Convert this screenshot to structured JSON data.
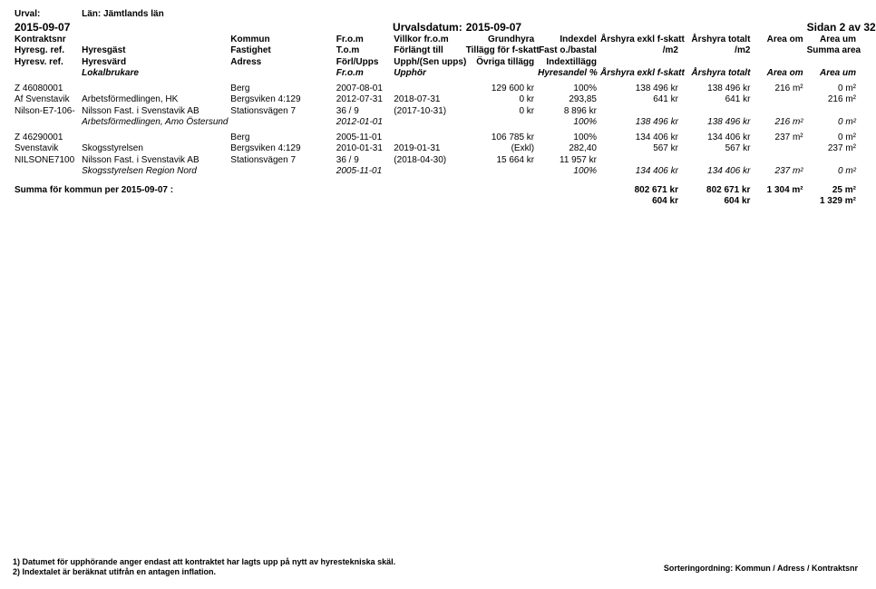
{
  "report": {
    "urval_label": "Urval:",
    "lan": "Län: Jämtlands län",
    "date": "2015-09-07",
    "urvalsdatum_label": "Urvalsdatum:",
    "urvalsdatum_value": "2015-09-07",
    "page_label": "Sidan 2 av 32"
  },
  "cols": {
    "w": [
      70,
      155,
      110,
      60,
      75,
      75,
      65,
      85,
      75,
      55,
      55
    ]
  },
  "header": {
    "r1": [
      "Kontraktsnr",
      "",
      "Kommun",
      "Fr.o.m",
      "Villkor fr.o.m",
      "Grundhyra",
      "Indexdel",
      "Årshyra exkl f-skatt",
      "Årshyra totalt",
      "Area om",
      "Area um"
    ],
    "r2": [
      "Hyresg. ref.",
      "Hyresgäst",
      "Fastighet",
      "T.o.m",
      "Förlängt till",
      "Tillägg för f-skatt",
      "Fast o./bastal",
      "/m2",
      "/m2",
      "",
      "Summa area"
    ],
    "r3": [
      "Hyresv. ref.",
      "Hyresvärd",
      "Adress",
      "Förl/Upps",
      "Upph/(Sen upps)",
      "Övriga tillägg",
      "Indextillägg",
      "",
      "",
      "",
      ""
    ],
    "r4": [
      "",
      "Lokalbrukare",
      "",
      "Fr.o.m",
      "Upphör",
      "",
      "Hyresandel %",
      "Årshyra exkl f-skatt",
      "Årshyra totalt",
      "Area om",
      "Area um"
    ]
  },
  "blocks": [
    {
      "rows": [
        [
          "Z 46080001",
          "",
          "Berg",
          "2007-08-01",
          "",
          "129 600 kr",
          "100%",
          "138 496 kr",
          "138 496 kr",
          "216 m²",
          "0 m²"
        ],
        [
          "Af Svenstavik",
          "Arbetsförmedlingen, HK",
          "Bergsviken 4:129",
          "2012-07-31",
          "2018-07-31",
          "0 kr",
          "293,85",
          "641 kr",
          "641 kr",
          "",
          "216 m²"
        ],
        [
          "Nilson-E7-106-",
          "Nilsson Fast. i Svenstavik AB",
          "Stationsvägen 7",
          "36 / 9",
          "(2017-10-31)",
          "0 kr",
          "8 896 kr",
          "",
          "",
          "",
          ""
        ]
      ],
      "group": [
        "",
        "Arbetsförmedlingen, Amo Östersund",
        "",
        "2012-01-01",
        "",
        "",
        "100%",
        "138 496 kr",
        "138 496 kr",
        "216 m²",
        "0 m²"
      ]
    },
    {
      "rows": [
        [
          "Z 46290001",
          "",
          "Berg",
          "2005-11-01",
          "",
          "106 785 kr",
          "100%",
          "134 406 kr",
          "134 406 kr",
          "237 m²",
          "0 m²"
        ],
        [
          "Svenstavik",
          "Skogsstyrelsen",
          "Bergsviken 4:129",
          "2010-01-31",
          "2019-01-31",
          "(Exkl)",
          "282,40",
          "567 kr",
          "567 kr",
          "",
          "237 m²"
        ],
        [
          "NILSONE7100",
          "Nilsson Fast. i Svenstavik AB",
          "Stationsvägen 7",
          "36 / 9",
          "(2018-04-30)",
          "15 664 kr",
          "11 957 kr",
          "",
          "",
          "",
          ""
        ]
      ],
      "group": [
        "",
        "Skogsstyrelsen Region Nord",
        "",
        "2005-11-01",
        "",
        "",
        "100%",
        "134 406 kr",
        "134 406 kr",
        "237 m²",
        "0 m²"
      ]
    }
  ],
  "summary": {
    "label": "Summa för kommun per 2015-09-07 :",
    "r1": [
      "",
      "",
      "",
      "",
      "",
      "",
      "",
      "802 671 kr",
      "802 671 kr",
      "1 304 m²",
      "25 m²"
    ],
    "r2": [
      "",
      "",
      "",
      "",
      "",
      "",
      "",
      "604 kr",
      "604 kr",
      "",
      "1 329 m²"
    ]
  },
  "foot": {
    "n1": "1) Datumet för upphörande anger endast att kontraktet har lagts upp på nytt av hyrestekniska skäl.",
    "n2": "2) Indextalet är beräknat utifrån en antagen inflation.",
    "sort": "Sorteringordning: Kommun / Adress / Kontraktsnr"
  }
}
